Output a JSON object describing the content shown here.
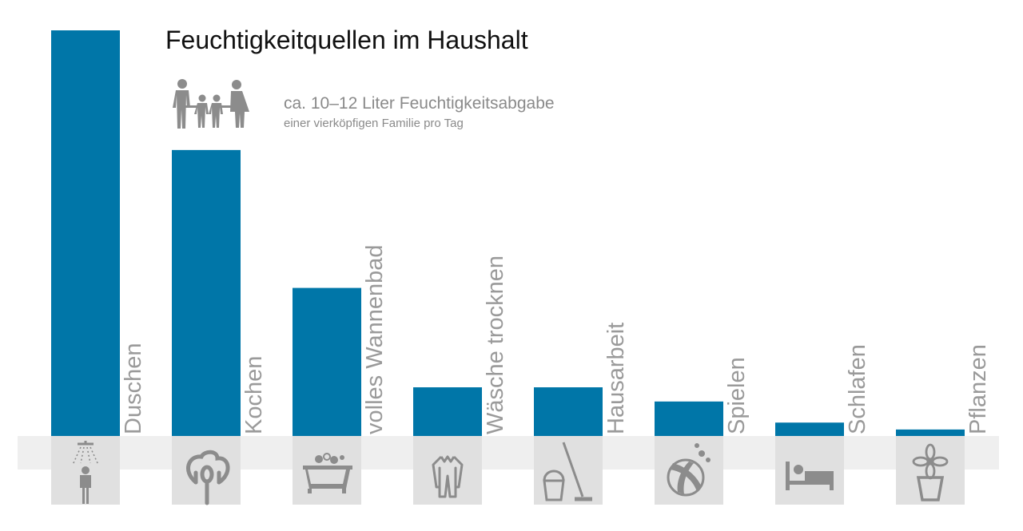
{
  "title": "Feuchtigkeitquellen im Haushalt",
  "subtitle_line1": "ca. 10–12 Liter Feuchtigkeitsabgabe",
  "subtitle_line2": "einer vierköpfigen Familie pro Tag",
  "family_icon": "family-icon",
  "colors": {
    "bar": "#0076a8",
    "icon": "#8c8c8c",
    "label": "#9a9a9a",
    "band": "#efefef",
    "icon_box": "#e0e0e0"
  },
  "chart_data": {
    "type": "bar",
    "title": "Feuchtigkeitquellen im Haushalt",
    "categories": [
      "Duschen",
      "Kochen",
      "volles Wannenbad",
      "Wäsche trocknen",
      "Hausarbeit",
      "Spielen",
      "Schlafen",
      "Pflanzen"
    ],
    "values": [
      100,
      70.5,
      36.5,
      12,
      12,
      8.5,
      3.3,
      1.6
    ],
    "icons": [
      "shower-icon",
      "cooking-icon",
      "bathtub-icon",
      "laundry-icon",
      "housework-icon",
      "ball-icon",
      "bed-icon",
      "plant-icon"
    ],
    "ylim": [
      0,
      100
    ],
    "grid": false,
    "legend": "none"
  }
}
